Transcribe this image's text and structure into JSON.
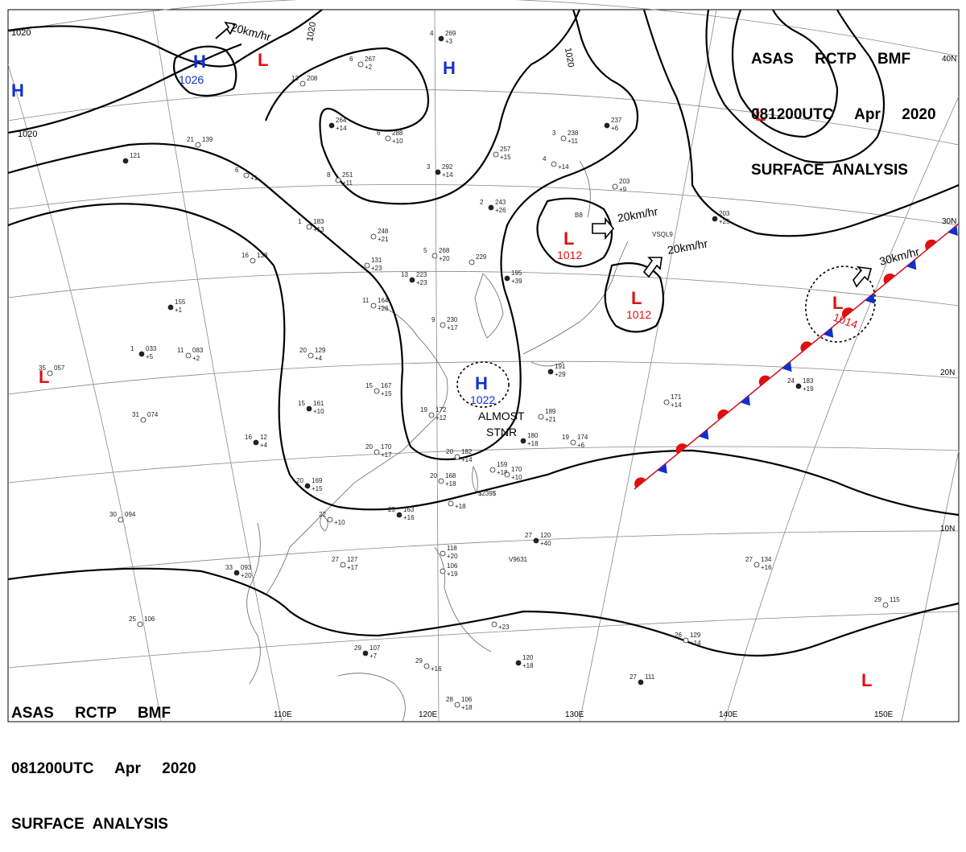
{
  "header_top_right": {
    "line1": "ASAS     RCTP     BMF",
    "line2": "081200UTC     Apr     2020",
    "line3": "SURFACE  ANALYSIS"
  },
  "header_bottom_left": {
    "line1": "ASAS     RCTP     BMF",
    "line2": "081200UTC     Apr     2020",
    "line3": "SURFACE  ANALYSIS"
  },
  "lon_labels": [
    "110E",
    "120E",
    "130E",
    "140E",
    "150E"
  ],
  "lat_labels": [
    "40N",
    "30N",
    "20N",
    "10N"
  ],
  "isobar_labels": [
    "1020",
    "1020",
    "1020",
    "1020"
  ],
  "pressure_centers": [
    {
      "type": "H",
      "value": "1026",
      "color": "#1030d0"
    },
    {
      "type": "H",
      "value": "",
      "color": "#1030d0"
    },
    {
      "type": "H",
      "value": "",
      "color": "#1030d0"
    },
    {
      "type": "H",
      "value": "1022",
      "color": "#1030d0"
    },
    {
      "type": "L",
      "value": "",
      "color": "#e01010"
    },
    {
      "type": "L",
      "value": "",
      "color": "#e01010"
    },
    {
      "type": "L",
      "value": "1012",
      "color": "#e01010"
    },
    {
      "type": "L",
      "value": "1012",
      "color": "#e01010"
    },
    {
      "type": "L",
      "value": "1014",
      "color": "#e01010"
    },
    {
      "type": "L",
      "value": "",
      "color": "#e01010"
    },
    {
      "type": "L",
      "value": "",
      "color": "#e01010"
    }
  ],
  "motion_labels": [
    "20km/hr",
    "20km/hr",
    "20km/hr",
    "30km/hr"
  ],
  "stationary_note": {
    "line1": "ALMOST",
    "line2": "STNR"
  },
  "station_plots": [
    {
      "t": "4",
      "p": "269",
      "tend": "+3"
    },
    {
      "t": "6",
      "p": "267",
      "tend": "+2"
    },
    {
      "t": "13",
      "p": "208",
      "tend": ""
    },
    {
      "t": "",
      "p": "264",
      "tend": "+14"
    },
    {
      "t": "6",
      "p": "288",
      "tend": "+10"
    },
    {
      "t": "21",
      "p": "139",
      "tend": ""
    },
    {
      "t": "",
      "p": "121",
      "tend": ""
    },
    {
      "t": "6",
      "p": "",
      "tend": "+1"
    },
    {
      "t": "8",
      "p": "251",
      "tend": "+11"
    },
    {
      "t": "3",
      "p": "292",
      "tend": "+14"
    },
    {
      "t": "3",
      "p": "238",
      "tend": "+11"
    },
    {
      "t": "",
      "p": "257",
      "tend": "+15"
    },
    {
      "t": "",
      "p": "237",
      "tend": "+6"
    },
    {
      "t": "4",
      "p": "",
      "tend": "+14"
    },
    {
      "t": "",
      "p": "203",
      "tend": "+9"
    },
    {
      "t": "",
      "p": "203",
      "tend": "+25"
    },
    {
      "t": "1",
      "p": "183",
      "tend": "+13"
    },
    {
      "t": "",
      "p": "248",
      "tend": "+21"
    },
    {
      "t": "2",
      "p": "243",
      "tend": "+26"
    },
    {
      "t": "5",
      "p": "268",
      "tend": "+20"
    },
    {
      "t": "",
      "p": "229",
      "tend": ""
    },
    {
      "t": "",
      "p": "195",
      "tend": "+39"
    },
    {
      "t": "16",
      "p": "138",
      "tend": ""
    },
    {
      "t": "",
      "p": "131",
      "tend": "+23"
    },
    {
      "t": "13",
      "p": "223",
      "tend": "+23"
    },
    {
      "t": "11",
      "p": "164",
      "tend": "+26"
    },
    {
      "t": "9",
      "p": "230",
      "tend": "+17"
    },
    {
      "t": "",
      "p": "155",
      "tend": "+1"
    },
    {
      "t": "11",
      "p": "083",
      "tend": "+2"
    },
    {
      "t": "20",
      "p": "129",
      "tend": "+4"
    },
    {
      "t": "1",
      "p": "033",
      "tend": "+5"
    },
    {
      "t": "35",
      "p": "057",
      "tend": ""
    },
    {
      "t": "15",
      "p": "167",
      "tend": "+15"
    },
    {
      "t": "15",
      "p": "161",
      "tend": "+10"
    },
    {
      "t": "19",
      "p": "172",
      "tend": "+12"
    },
    {
      "t": "31",
      "p": "074",
      "tend": ""
    },
    {
      "t": "16",
      "p": "12",
      "tend": "+4"
    },
    {
      "t": "20",
      "p": "170",
      "tend": "+17"
    },
    {
      "t": "20",
      "p": "182",
      "tend": "+14"
    },
    {
      "t": "",
      "p": "191",
      "tend": "+29"
    },
    {
      "t": "",
      "p": "189",
      "tend": "+21"
    },
    {
      "t": "19",
      "p": "174",
      "tend": "+6"
    },
    {
      "t": "",
      "p": "180",
      "tend": "+18"
    },
    {
      "t": "",
      "p": "159",
      "tend": "+18"
    },
    {
      "t": "",
      "p": "170",
      "tend": "+10"
    },
    {
      "t": "20",
      "p": "169",
      "tend": "+15"
    },
    {
      "t": "20",
      "p": "168",
      "tend": "+18"
    },
    {
      "t": "",
      "p": "171",
      "tend": "+14"
    },
    {
      "t": "24",
      "p": "183",
      "tend": "+19"
    },
    {
      "t": "22",
      "p": "",
      "tend": "+10"
    },
    {
      "t": "",
      "p": "",
      "tend": "+18"
    },
    {
      "t": "23",
      "p": "163",
      "tend": "+16"
    },
    {
      "t": "30",
      "p": "094",
      "tend": ""
    },
    {
      "t": "27",
      "p": "127",
      "tend": "+17"
    },
    {
      "t": "33",
      "p": "093",
      "tend": "+20"
    },
    {
      "t": "",
      "p": "118",
      "tend": "+20"
    },
    {
      "t": "",
      "p": "106",
      "tend": "+19"
    },
    {
      "t": "27",
      "p": "120",
      "tend": "+40"
    },
    {
      "t": "27",
      "p": "134",
      "tend": "+16"
    },
    {
      "t": "25",
      "p": "106",
      "tend": ""
    },
    {
      "t": "29",
      "p": "107",
      "tend": "+7"
    },
    {
      "t": "29",
      "p": "",
      "tend": "+16"
    },
    {
      "t": "",
      "p": "",
      "tend": "+23"
    },
    {
      "t": "",
      "p": "120",
      "tend": "+18"
    },
    {
      "t": "26",
      "p": "129",
      "tend": "+14"
    },
    {
      "t": "29",
      "p": "115",
      "tend": ""
    },
    {
      "t": "27",
      "p": "111",
      "tend": ""
    },
    {
      "t": "28",
      "p": "106",
      "tend": "+18"
    }
  ],
  "ship_ids": [
    "VSQL9",
    "V9631",
    "$239$",
    "B8"
  ],
  "colors": {
    "isobar": "#000000",
    "high": "#1030d0",
    "low": "#e01010",
    "warm_front": "#e01010",
    "cold_front": "#1030d0",
    "grid": "#808080",
    "coast": "#606060"
  }
}
